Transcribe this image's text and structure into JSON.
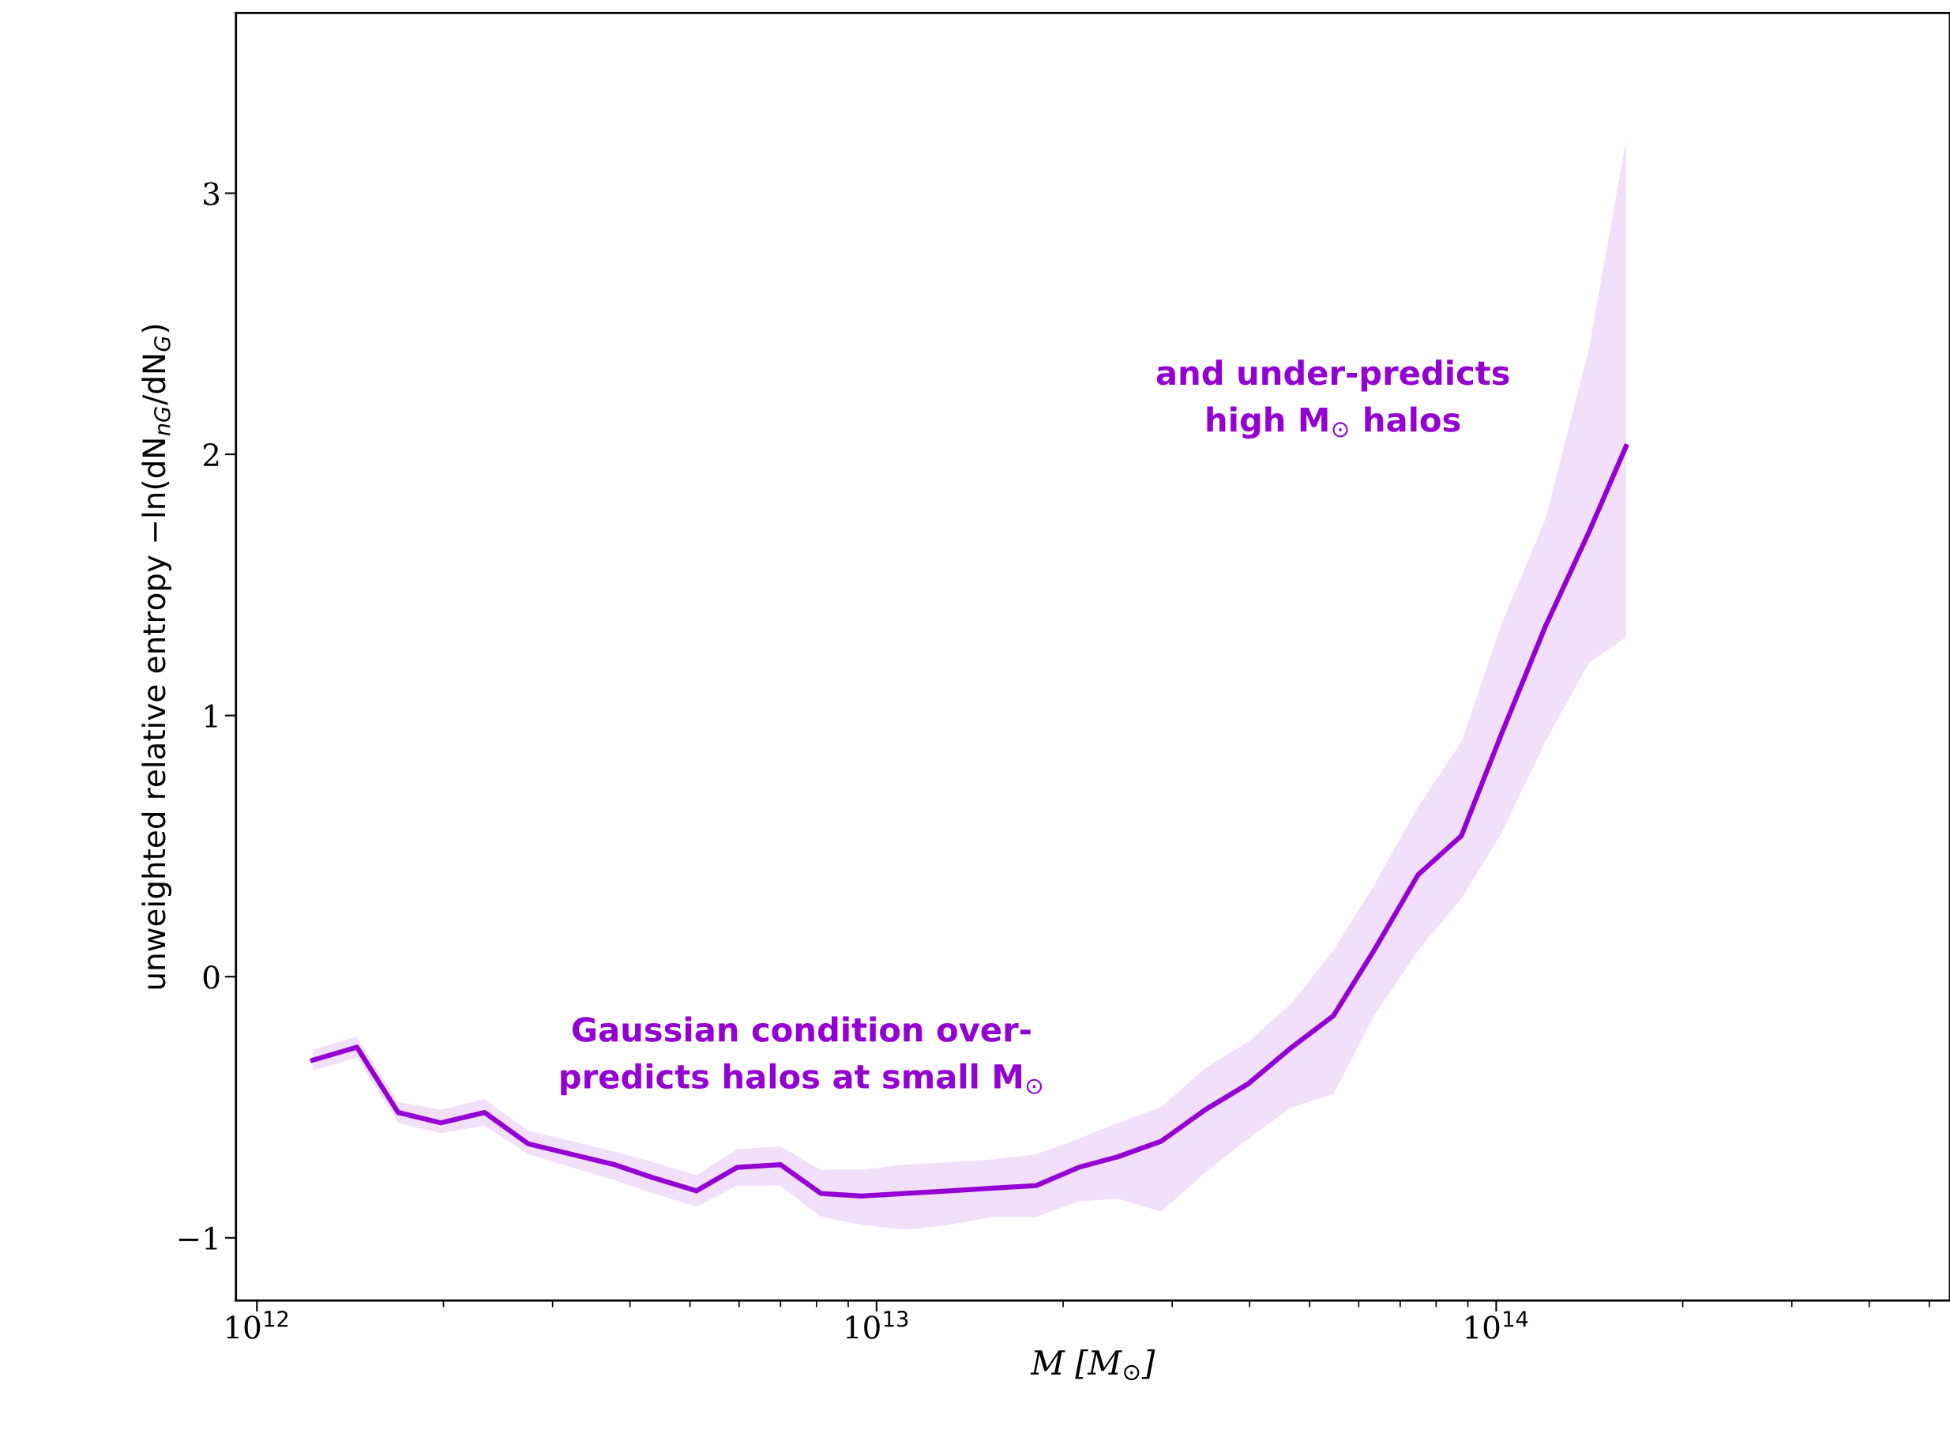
{
  "chart_data": {
    "type": "line",
    "xlabel": "M [M$_{⊙}$]",
    "ylabel": "unweighted relative entropy −ln(dN$_{nG}$/dN$_{G}$)",
    "log": "x",
    "grid": false,
    "legend": false,
    "marker": "none",
    "line_style": "solid",
    "xlim": [
      925000000000.0,
      540000000000000.0
    ],
    "ylim": [
      -1.24,
      3.69
    ],
    "xticks": [
      {
        "value": 1000000000000.0,
        "label": "10$^{12}$"
      },
      {
        "value": 10000000000000.0,
        "label": "10$^{13}$"
      },
      {
        "value": 100000000000000.0,
        "label": "10$^{14}$"
      }
    ],
    "yticks": [
      {
        "value": -1,
        "label": "−1"
      },
      0,
      1,
      2,
      3
    ],
    "x": [
      1230000000000.0,
      1450000000000.0,
      1690000000000.0,
      1980000000000.0,
      2330000000000.0,
      2740000000000.0,
      3220000000000.0,
      3780000000000.0,
      4360000000000.0,
      5120000000000.0,
      5960000000000.0,
      7000000000000.0,
      8130000000000.0,
      9460000000000.0,
      11100000000000.0,
      13100000000000.0,
      15400000000000.0,
      18100000000000.0,
      21200000000000.0,
      24500000000000.0,
      28800000000000.0,
      33900000000000.0,
      39800000000000.0,
      46800000000000.0,
      54600000000000.0,
      63500000000000.0,
      74800000000000.0,
      87900000000000.0,
      102000000000000.0,
      120000000000000.0,
      141000000000000.0,
      162000000000000.0
    ],
    "series": [
      {
        "color": "#9400d3",
        "values": [
          -0.32,
          -0.27,
          -0.52,
          -0.56,
          -0.52,
          -0.64,
          -0.68,
          -0.72,
          -0.77,
          -0.82,
          -0.73,
          -0.72,
          -0.83,
          -0.84,
          -0.83,
          -0.82,
          -0.81,
          -0.8,
          -0.73,
          -0.69,
          -0.63,
          -0.51,
          -0.41,
          -0.27,
          -0.15,
          0.1,
          0.39,
          0.54,
          0.93,
          1.34,
          1.7,
          2.03
        ],
        "lower": [
          -0.36,
          -0.31,
          -0.56,
          -0.6,
          -0.57,
          -0.68,
          -0.73,
          -0.78,
          -0.83,
          -0.88,
          -0.8,
          -0.8,
          -0.92,
          -0.95,
          -0.97,
          -0.95,
          -0.92,
          -0.92,
          -0.86,
          -0.85,
          -0.9,
          -0.75,
          -0.62,
          -0.5,
          -0.45,
          -0.15,
          0.1,
          0.3,
          0.55,
          0.9,
          1.2,
          1.3
        ],
        "upper": [
          -0.28,
          -0.23,
          -0.48,
          -0.51,
          -0.47,
          -0.59,
          -0.63,
          -0.67,
          -0.71,
          -0.76,
          -0.66,
          -0.65,
          -0.74,
          -0.74,
          -0.72,
          -0.71,
          -0.7,
          -0.68,
          -0.62,
          -0.56,
          -0.5,
          -0.35,
          -0.25,
          -0.1,
          0.1,
          0.35,
          0.65,
          0.9,
          1.35,
          1.75,
          2.4,
          3.2
        ]
      }
    ],
    "annotations": [
      "Gaussian condition over-\npredicts halos at small M$_{⊙}$",
      "and under-predicts\nhigh M$_{⊙}$ halos"
    ]
  }
}
